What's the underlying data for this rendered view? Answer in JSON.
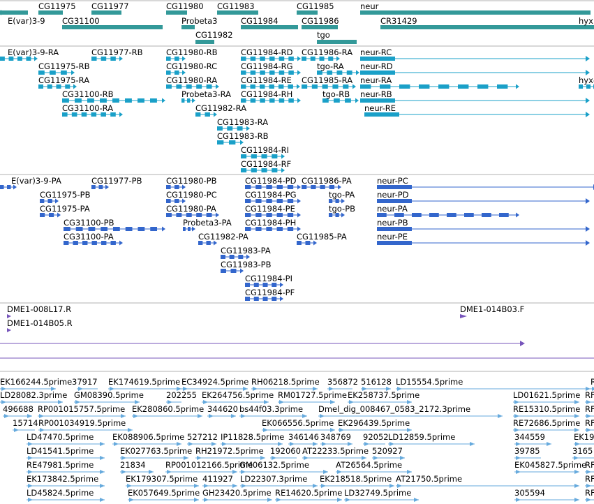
{
  "colors": {
    "gene": "#339999",
    "transcript": "#1aa0c8",
    "protein": "#3366cc",
    "clone": "#7755bb",
    "est": "#66aadd",
    "separator": "#b0b0b0"
  },
  "gene_track": [
    {
      "label": "CG11975"
    },
    {
      "label": "CG11977"
    },
    {
      "label": "CG11980"
    },
    {
      "label": "CG11983"
    },
    {
      "label": "CG11985"
    },
    {
      "label": "neur"
    },
    {
      "label": "E(var)3-9"
    },
    {
      "label": "CG31100"
    },
    {
      "label": "Probeta3"
    },
    {
      "label": "CG11984"
    },
    {
      "label": "CG11986"
    },
    {
      "label": "CR31429"
    },
    {
      "label": "hyx"
    },
    {
      "label": "CG11982"
    },
    {
      "label": "tgo"
    }
  ],
  "transcript_track": [
    {
      "label": "E(var)3-9-RA"
    },
    {
      "label": "CG11977-RB"
    },
    {
      "label": "CG11980-RB"
    },
    {
      "label": "CG11984-RD"
    },
    {
      "label": "CG11986-RA"
    },
    {
      "label": "neur-RC"
    },
    {
      "label": "CG11975-RB"
    },
    {
      "label": "CG11980-RC"
    },
    {
      "label": "CG11984-RG"
    },
    {
      "label": "tgo-RA"
    },
    {
      "label": "neur-RD"
    },
    {
      "label": "CG11975-RA"
    },
    {
      "label": "CG11980-RA"
    },
    {
      "label": "CG11984-RE"
    },
    {
      "label": "CG11985-RA"
    },
    {
      "label": "neur-RA"
    },
    {
      "label": "hyx-"
    },
    {
      "label": "CG31100-RB"
    },
    {
      "label": "Probeta3-RA"
    },
    {
      "label": "CG11984-RH"
    },
    {
      "label": "tgo-RB"
    },
    {
      "label": "neur-RB"
    },
    {
      "label": "CG31100-RA"
    },
    {
      "label": "CG11982-RA"
    },
    {
      "label": "neur-RE"
    },
    {
      "label": "CG11983-RA"
    },
    {
      "label": "CG11983-RB"
    },
    {
      "label": "CG11984-RI"
    },
    {
      "label": "CG11984-RF"
    }
  ],
  "protein_track": [
    {
      "label": "E(var)3-9-PA"
    },
    {
      "label": "CG11977-PB"
    },
    {
      "label": "CG11980-PB"
    },
    {
      "label": "CG11984-PD"
    },
    {
      "label": "CG11986-PA"
    },
    {
      "label": "neur-PC"
    },
    {
      "label": "CG11975-PB"
    },
    {
      "label": "CG11980-PC"
    },
    {
      "label": "CG11984-PG"
    },
    {
      "label": "tgo-PA"
    },
    {
      "label": "neur-PD"
    },
    {
      "label": "CG11975-PA"
    },
    {
      "label": "CG11980-PA"
    },
    {
      "label": "CG11984-PE"
    },
    {
      "label": "tgo-PB"
    },
    {
      "label": "neur-PA"
    },
    {
      "label": "CG31100-PB"
    },
    {
      "label": "Probeta3-PA"
    },
    {
      "label": "CG11984-PH"
    },
    {
      "label": "neur-PB"
    },
    {
      "label": "CG31100-PA"
    },
    {
      "label": "CG11982-PA"
    },
    {
      "label": "CG11985-PA"
    },
    {
      "label": "neur-PE"
    },
    {
      "label": "CG11983-PA"
    },
    {
      "label": "CG11983-PB"
    },
    {
      "label": "CG11984-PI"
    },
    {
      "label": "CG11984-PF"
    }
  ],
  "clone_track": [
    {
      "label": "DME1-008L17.R"
    },
    {
      "label": "DME1-014B05.R"
    },
    {
      "label": "DME1-014B03.F"
    }
  ],
  "est_track": [
    {
      "label": "EK166244.5prime"
    },
    {
      "label": "37917"
    },
    {
      "label": "EK174619.5prime"
    },
    {
      "label": "EC34924.5prime"
    },
    {
      "label": "RH06218.5prime"
    },
    {
      "label": "356872"
    },
    {
      "label": "516128"
    },
    {
      "label": "LD15554.5prime"
    },
    {
      "label": "R"
    },
    {
      "label": "LD28082.3prime"
    },
    {
      "label": "GM08390.5prime"
    },
    {
      "label": "202255"
    },
    {
      "label": "EK264756.5prime"
    },
    {
      "label": "RM01727.5prime"
    },
    {
      "label": "EK258737.5prime"
    },
    {
      "label": "LD01621.5prime"
    },
    {
      "label": "RF"
    },
    {
      "label": "496688"
    },
    {
      "label": "RP001015757.5prime"
    },
    {
      "label": "EK280860.5prime"
    },
    {
      "label": "344620"
    },
    {
      "label": "bs44f03.3prime"
    },
    {
      "label": "Dmel_dig_008467_0583_2172.3prime"
    },
    {
      "label": "RE15310.5prime"
    },
    {
      "label": "RF"
    },
    {
      "label": "15714"
    },
    {
      "label": "RP001034919.5prime"
    },
    {
      "label": "EK066556.5prime"
    },
    {
      "label": "EK296439.5prime"
    },
    {
      "label": "RE72686.5prime"
    },
    {
      "label": "RF"
    },
    {
      "label": "LD47470.5prime"
    },
    {
      "label": "EK088906.5prime"
    },
    {
      "label": "527212"
    },
    {
      "label": "IP11828.5prime"
    },
    {
      "label": "346146"
    },
    {
      "label": "348769"
    },
    {
      "label": "92052"
    },
    {
      "label": "LD12859.5prime"
    },
    {
      "label": "344559"
    },
    {
      "label": "EK19"
    },
    {
      "label": "LD41541.5prime"
    },
    {
      "label": "EK027763.5prime"
    },
    {
      "label": "RH21972.5prime"
    },
    {
      "label": "192060"
    },
    {
      "label": "AT22233.5prime"
    },
    {
      "label": "520927"
    },
    {
      "label": "39785"
    },
    {
      "label": "3165"
    },
    {
      "label": "RE47981.5prime"
    },
    {
      "label": "21834"
    },
    {
      "label": "RP001012166.5prime"
    },
    {
      "label": "GM06132.5prime"
    },
    {
      "label": "AT26564.5prime"
    },
    {
      "label": "EK045827.5prime"
    },
    {
      "label": "RF"
    },
    {
      "label": "EK173842.5prime"
    },
    {
      "label": "EK179307.5prime"
    },
    {
      "label": "411927"
    },
    {
      "label": "LD22307.3prime"
    },
    {
      "label": "EK218518.5prime"
    },
    {
      "label": "AT21750.5prime"
    },
    {
      "label": "RF"
    },
    {
      "label": "LD45824.5prime"
    },
    {
      "label": "EK057649.5prime"
    },
    {
      "label": "GH23420.5prime"
    },
    {
      "label": "RE14620.5prime"
    },
    {
      "label": "LD32749.5prime"
    },
    {
      "label": "305594"
    },
    {
      "label": "RF"
    }
  ]
}
